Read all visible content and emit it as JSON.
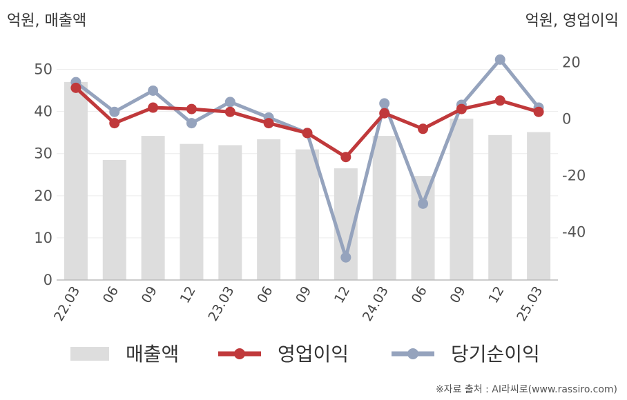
{
  "left_unit": "억원, 매출액",
  "right_unit": "억원, 영업이익",
  "source": "※자료 출처 : AI라씨로(www.rassiro.com)",
  "chart_data": {
    "type": "bar",
    "categories": [
      "22.03",
      "06",
      "09",
      "12",
      "23.03",
      "06",
      "09",
      "12",
      "24.03",
      "06",
      "09",
      "12",
      "25.03"
    ],
    "left_axis": {
      "ticks": [
        0,
        10,
        20,
        30,
        40,
        50
      ],
      "ylim": [
        0,
        55
      ]
    },
    "right_axis": {
      "ticks": [
        -40,
        -20,
        0,
        20
      ],
      "ylim": [
        -57,
        25
      ]
    },
    "grid": true,
    "legend_position": "bottom",
    "series": [
      {
        "name": "매출액",
        "type": "bar",
        "axis": "left",
        "color": "#dddddd",
        "values": [
          47.0,
          28.5,
          34.2,
          32.3,
          32.0,
          33.4,
          31.0,
          26.5,
          34.2,
          24.7,
          38.3,
          34.4,
          35.1
        ]
      },
      {
        "name": "영업이익",
        "type": "line",
        "axis": "right",
        "color": "#c0393b",
        "values": [
          11,
          -1.5,
          4,
          3.5,
          2.5,
          -1.5,
          -5,
          -13.5,
          2,
          -3.5,
          3.5,
          6.5,
          2.5
        ]
      },
      {
        "name": "당기순이익",
        "type": "line",
        "axis": "right",
        "color": "#95a3bd",
        "values": [
          13,
          2.5,
          10,
          -1.5,
          6,
          0.5,
          -5,
          -49,
          5.5,
          -30,
          5,
          21,
          4
        ]
      }
    ]
  }
}
